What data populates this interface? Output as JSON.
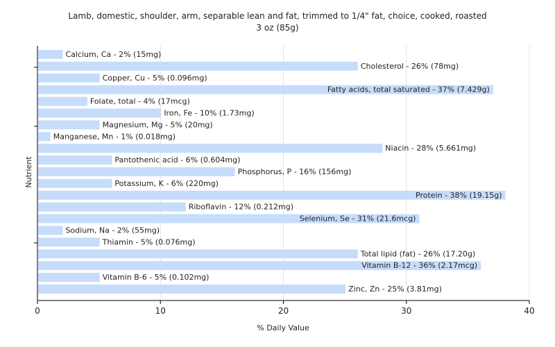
{
  "chart_data": {
    "type": "bar",
    "orientation": "horizontal",
    "title": "Lamb, domestic, shoulder, arm, separable lean and fat, trimmed to 1/4\" fat, choice, cooked, roasted",
    "subtitle": "3 oz (85g)",
    "xlabel": "% Daily Value",
    "ylabel": "Nutrient",
    "xlim": [
      0,
      40
    ],
    "xticks": [
      0,
      10,
      20,
      30,
      40
    ],
    "grid": true,
    "bar_color": "#c6dcfb",
    "categories": [
      "Calcium, Ca",
      "Cholesterol",
      "Copper, Cu",
      "Fatty acids, total saturated",
      "Folate, total",
      "Iron, Fe",
      "Magnesium, Mg",
      "Manganese, Mn",
      "Niacin",
      "Pantothenic acid",
      "Phosphorus, P",
      "Potassium, K",
      "Protein",
      "Riboflavin",
      "Selenium, Se",
      "Sodium, Na",
      "Thiamin",
      "Total lipid (fat)",
      "Vitamin B-12",
      "Vitamin B-6",
      "Zinc, Zn"
    ],
    "values": [
      2,
      26,
      5,
      37,
      4,
      10,
      5,
      1,
      28,
      6,
      16,
      6,
      38,
      12,
      31,
      2,
      5,
      26,
      36,
      5,
      25
    ],
    "labels": [
      "Calcium, Ca - 2% (15mg)",
      "Cholesterol - 26% (78mg)",
      "Copper, Cu - 5% (0.096mg)",
      "Fatty acids, total saturated - 37% (7.429g)",
      "Folate, total - 4% (17mcg)",
      "Iron, Fe - 10% (1.73mg)",
      "Magnesium, Mg - 5% (20mg)",
      "Manganese, Mn - 1% (0.018mg)",
      "Niacin - 28% (5.661mg)",
      "Pantothenic acid - 6% (0.604mg)",
      "Phosphorus, P - 16% (156mg)",
      "Potassium, K - 6% (220mg)",
      "Protein - 38% (19.15g)",
      "Riboflavin - 12% (0.212mg)",
      "Selenium, Se - 31% (21.6mcg)",
      "Sodium, Na - 2% (55mg)",
      "Thiamin - 5% (0.076mg)",
      "Total lipid (fat) - 26% (17.20g)",
      "Vitamin B-12 - 36% (2.17mcg)",
      "Vitamin B-6 - 5% (0.102mg)",
      "Zinc, Zn - 25% (3.81mg)"
    ]
  }
}
